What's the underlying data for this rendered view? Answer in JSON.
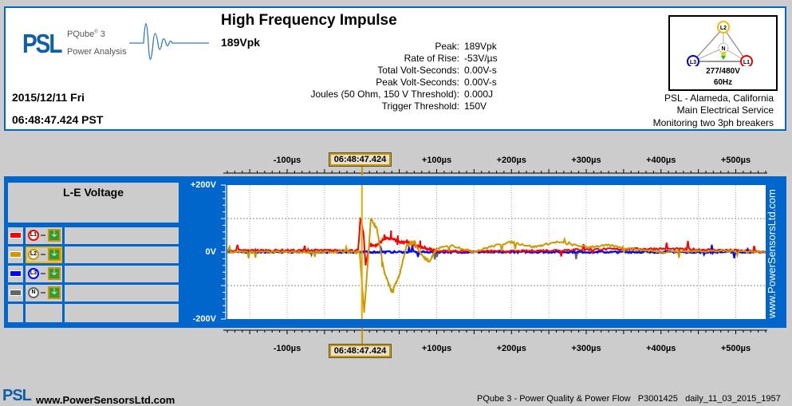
{
  "header": {
    "logo": {
      "brand": "PSL",
      "product": "PQube",
      "product_version": "3",
      "subtitle": "Power Analysis"
    },
    "title": "High Frequency Impulse",
    "peak": "189Vpk",
    "date": "2015/12/11 Fri",
    "time": "06:48:47.424 PST",
    "measurements": [
      {
        "label": "Peak:",
        "value": "189Vpk"
      },
      {
        "label": "Rate of Rise:",
        "value": "-53V/µs"
      },
      {
        "label": "Total Volt-Seconds:",
        "value": "0.00V-s"
      },
      {
        "label": "Peak Volt-Seconds:",
        "value": "0.00V-s"
      },
      {
        "label": "Joules (50 Ohm, 150 V Threshold):",
        "value": "0.000J"
      },
      {
        "label": "Trigger Threshold:",
        "value": "150V"
      }
    ],
    "diagram": {
      "nodes": [
        "L1",
        "L2",
        "L3",
        "N"
      ],
      "voltage": "277/480V",
      "frequency": "60Hz"
    },
    "location": [
      "PSL - Alameda, California",
      "Main Electrical Service",
      "Monitoring two 3ph breakers"
    ]
  },
  "chart": {
    "title": "L-E Voltage",
    "cursor_time": "06:48:47.424",
    "x_ticks": [
      "-100µs",
      "+100µs",
      "+200µs",
      "+300µs",
      "+400µs",
      "+500µs"
    ],
    "y_ticks": [
      "+200V",
      "0V",
      "-200V"
    ],
    "watermark": "www.PowerSensorsLtd.com",
    "channels": [
      {
        "name": "L1",
        "color": "#ff0000"
      },
      {
        "name": "L2",
        "color": "#cc9900",
        "selected": true
      },
      {
        "name": "L3",
        "color": "#0000ff"
      },
      {
        "name": "N",
        "color": "#666666"
      }
    ],
    "ground_label": "⏚"
  },
  "chart_data": {
    "type": "line",
    "xlabel": "µs",
    "ylabel": "V",
    "xlim": [
      -180,
      540
    ],
    "ylim": [
      -200,
      200
    ],
    "series": [
      {
        "name": "L1",
        "points": [
          [
            -180,
            5
          ],
          [
            -5,
            5
          ],
          [
            -2,
            100
          ],
          [
            2,
            60
          ],
          [
            5,
            -40
          ],
          [
            10,
            20
          ],
          [
            20,
            20
          ],
          [
            30,
            40
          ],
          [
            40,
            40
          ],
          [
            50,
            30
          ],
          [
            60,
            30
          ],
          [
            70,
            20
          ],
          [
            100,
            3
          ],
          [
            200,
            2
          ],
          [
            300,
            8
          ],
          [
            400,
            10
          ],
          [
            500,
            5
          ],
          [
            540,
            0
          ]
        ]
      },
      {
        "name": "L2",
        "points": [
          [
            -180,
            0
          ],
          [
            -3,
            0
          ],
          [
            0,
            -90
          ],
          [
            3,
            -180
          ],
          [
            7,
            -60
          ],
          [
            12,
            100
          ],
          [
            20,
            70
          ],
          [
            30,
            -60
          ],
          [
            40,
            -120
          ],
          [
            50,
            -70
          ],
          [
            60,
            20
          ],
          [
            70,
            30
          ],
          [
            80,
            -10
          ],
          [
            90,
            -30
          ],
          [
            100,
            10
          ],
          [
            120,
            20
          ],
          [
            150,
            0
          ],
          [
            170,
            15
          ],
          [
            200,
            30
          ],
          [
            230,
            15
          ],
          [
            260,
            30
          ],
          [
            300,
            15
          ],
          [
            330,
            20
          ],
          [
            360,
            10
          ],
          [
            400,
            0
          ],
          [
            450,
            3
          ],
          [
            500,
            3
          ],
          [
            540,
            0
          ]
        ]
      },
      {
        "name": "L3",
        "points": [
          [
            -180,
            0
          ],
          [
            540,
            0
          ]
        ]
      },
      {
        "name": "N",
        "points": [
          [
            -180,
            0
          ],
          [
            540,
            0
          ]
        ]
      }
    ]
  },
  "footer": {
    "brand": "PSL",
    "url": "www.PowerSensorsLtd.com",
    "product": "PQube 3 - Power Quality & Power Flow",
    "serial": "P3001425",
    "file": "daily_11_03_2015_1957"
  }
}
